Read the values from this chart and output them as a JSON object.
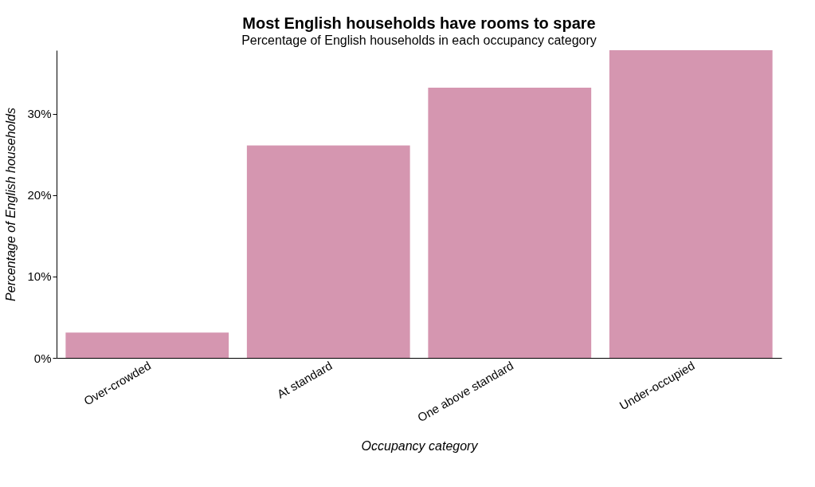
{
  "chart_data": {
    "type": "bar",
    "title": "Most English households have rooms to spare",
    "subtitle": "Percentage of English households in each occupancy category",
    "xlabel": "Occupancy category",
    "ylabel": "Percentage of English households",
    "categories": [
      "Over-crowded",
      "At standard",
      "One above standard",
      "Under-occupied"
    ],
    "values": [
      3.1,
      26.1,
      33.2,
      37.8
    ],
    "color": "#d596b0",
    "ylim": [
      0,
      37.8
    ],
    "yticks": [
      {
        "value": 0,
        "label": "0%"
      },
      {
        "value": 10,
        "label": "10%"
      },
      {
        "value": 20,
        "label": "20%"
      },
      {
        "value": 30,
        "label": "30%"
      }
    ],
    "grid": false
  }
}
